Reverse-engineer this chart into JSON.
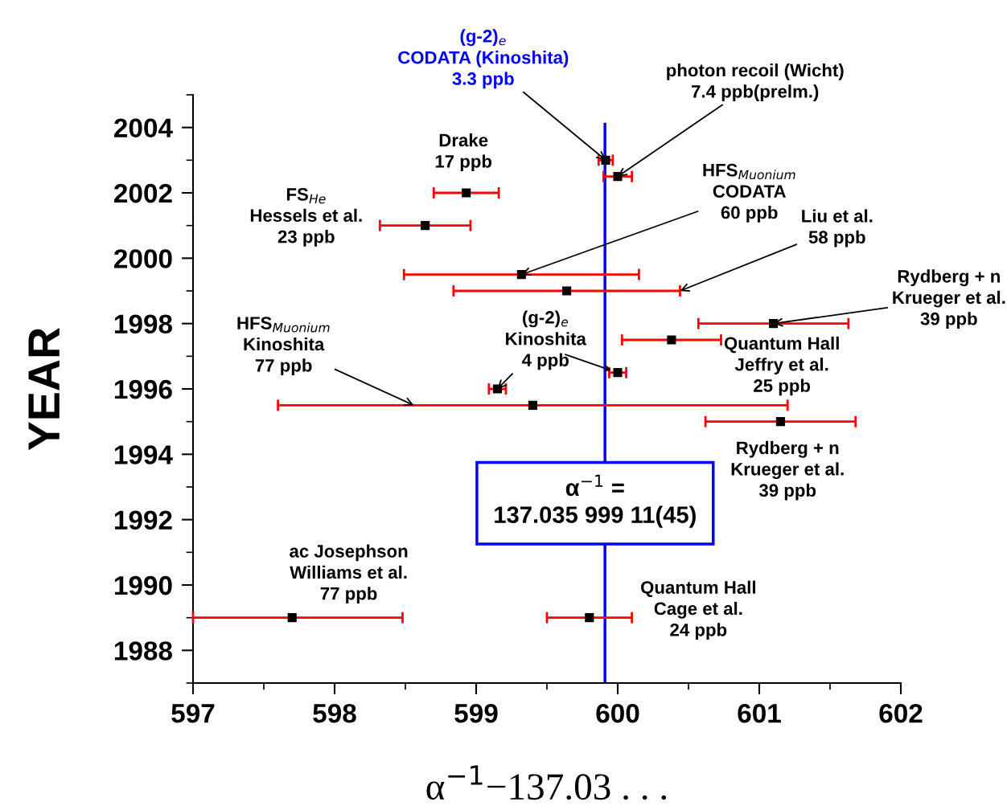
{
  "chart_data": {
    "type": "scatter",
    "xlabel": "α$^{−1}$−137.03 . . .",
    "ylabel": "YEAR",
    "xlim": [
      597,
      602
    ],
    "xticks": [
      597,
      598,
      599,
      600,
      601,
      602
    ],
    "ylim": [
      1987,
      2005
    ],
    "yticks": [
      1988,
      1990,
      1992,
      1994,
      1996,
      1998,
      2000,
      2002,
      2004
    ],
    "grid": false,
    "marker": "square",
    "series": [
      {
        "color": "#000000",
        "x": [
          599.915,
          600.0,
          598.93,
          598.64,
          599.32,
          599.64,
          601.1,
          600.38,
          600.0,
          599.15,
          599.4,
          601.15,
          597.7,
          599.8
        ],
        "values": [
          2003,
          2002.5,
          2002,
          2001,
          1999.5,
          1999,
          1998,
          1997.5,
          1996.5,
          1996,
          1995.5,
          1995,
          1989,
          1989
        ],
        "xerrors": [
          0.05,
          0.1,
          0.23,
          0.32,
          0.83,
          0.8,
          0.53,
          0.35,
          0.06,
          0.06,
          1.8,
          0.53,
          [
            597.0,
            598.48
          ],
          0.3
        ]
      }
    ],
    "ref_lines": [
      {
        "axis": "x",
        "value": 599.91,
        "color": "#0000ff"
      }
    ],
    "annotations": [
      "α$^{−1}$ =\n137.035 999 11(45)",
      {
        "text": "(g-2)$_{e}$\nCODATA (Kinoshita)\n3.3 ppb",
        "x": 599.915,
        "y": 2003
      },
      {
        "text": "photon recoil (Wicht)\n7.4 ppb(prelm.)",
        "x": 600.0,
        "y": 2002.5
      },
      {
        "text": "Drake\n17 ppb",
        "x": 598.93,
        "y": 2002
      },
      "FS$_{He}$\nHessels et al.\n23 ppb",
      {
        "text": "HFS$_{Muonium}$\nCODATA\n60 ppb",
        "x": 599.32,
        "y": 1999.5
      },
      {
        "text": "Liu et al.\n58 ppb",
        "x": 600.44,
        "y": 1999
      },
      {
        "text": "Rydberg + n\nKrueger et al.\n39 ppb",
        "x": 601.1,
        "y": 1998
      },
      {
        "text": "(g-2)$_{e}$\nKinoshita\n4 ppb",
        "x": 599.15,
        "y": 1996
      },
      {
        "text": "Quantum Hall\nJeffry et al.\n25 ppb",
        "x": 600.38,
        "y": 1997.5
      },
      {
        "text": "HFS$_{Muonium}$\nKinoshita\n77 ppb",
        "x": 598.56,
        "y": 1995.5
      },
      {
        "text": "Rydberg + n\nKrueger et al.\n39 ppb",
        "x": 601.15,
        "y": 1995
      },
      {
        "text": "ac Josephson\nWilliams et al.\n77 ppb",
        "x": 597.7,
        "y": 1989
      },
      {
        "text": "Quantum Hall\nCage et al.\n24 ppb",
        "x": 599.8,
        "y": 1989
      }
    ]
  }
}
